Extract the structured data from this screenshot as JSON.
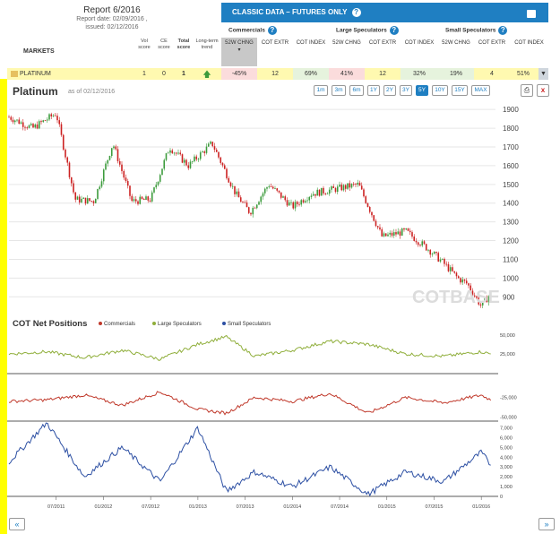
{
  "report": {
    "title": "Report 6/2016",
    "report_date": "Report date: 02/09/2016 ,",
    "issued": "issued: 02/12/2016"
  },
  "header": {
    "title": "CLASSIC DATA – FUTURES ONLY",
    "help": "?"
  },
  "groups": {
    "commercials": "Commercials",
    "large": "Large Speculators",
    "small": "Small Speculators"
  },
  "left_headers": {
    "markets": "MARKETS",
    "vol": "Vol score",
    "ce": "CE score",
    "total": "Total score",
    "trend": "Long-term trend"
  },
  "cols": {
    "chng": "52W CHNG",
    "extr": "COT EXTR",
    "index": "COT INDEX"
  },
  "row": {
    "name": "PLATINUM",
    "vol": "1",
    "ce": "0",
    "total": "1",
    "com_chng": "-45%",
    "com_extr": "12",
    "com_index": "69%",
    "large_chng": "41%",
    "large_extr": "12",
    "large_index": "32%",
    "small_chng": "19%",
    "small_extr": "4",
    "small_index": "51%"
  },
  "price_chart": {
    "title": "Platinum",
    "date": "as of 02/12/2016",
    "watermark": "COTBASE"
  },
  "ranges": [
    "1m",
    "3m",
    "6m",
    "1Y",
    "2Y",
    "3Y",
    "5Y",
    "10Y",
    "15Y",
    "MAX"
  ],
  "active_range": "5Y",
  "close_label": "x",
  "cot": {
    "title": "COT Net Positions"
  },
  "nav": {
    "prev": "«",
    "next": "»"
  },
  "colors": {
    "commercials": "#c0392b",
    "large": "#8fae3a",
    "small": "#2c4fa3",
    "up": "#3c9b3c",
    "down": "#cc2222"
  },
  "chart_data": [
    {
      "type": "line",
      "title": "Platinum",
      "ylim": [
        820,
        1920
      ],
      "y_ticks": [
        900,
        1000,
        1100,
        1200,
        1300,
        1400,
        1500,
        1600,
        1700,
        1800,
        1900
      ],
      "x_ticks": [
        "07/2011",
        "01/2012",
        "07/2012",
        "01/2013",
        "07/2013",
        "01/2014",
        "07/2014",
        "01/2015",
        "07/2015",
        "01/2016"
      ],
      "x": [
        2011.0,
        2011.25,
        2011.5,
        2011.7,
        2011.9,
        2012.1,
        2012.3,
        2012.5,
        2012.7,
        2012.9,
        2013.15,
        2013.4,
        2013.55,
        2013.75,
        2014.0,
        2014.2,
        2014.5,
        2014.7,
        2014.95,
        2015.2,
        2015.45,
        2015.6,
        2015.75,
        2015.85,
        2016.0,
        2016.1
      ],
      "series": [
        {
          "name": "Platinum",
          "values": [
            1860,
            1800,
            1880,
            1420,
            1410,
            1720,
            1410,
            1420,
            1700,
            1600,
            1720,
            1450,
            1350,
            1500,
            1380,
            1450,
            1480,
            1500,
            1220,
            1250,
            1150,
            1080,
            1000,
            970,
            850,
            920
          ]
        }
      ]
    },
    {
      "type": "line",
      "title": "COT Net Positions",
      "x_ticks": [
        "07/2011",
        "01/2012",
        "07/2012",
        "01/2013",
        "07/2013",
        "01/2014",
        "07/2014",
        "01/2015",
        "07/2015",
        "01/2016"
      ],
      "x": [
        2011.0,
        2011.4,
        2011.8,
        2012.2,
        2012.6,
        2013.0,
        2013.3,
        2013.6,
        2014.0,
        2014.4,
        2014.8,
        2015.2,
        2015.6,
        2016.0,
        2016.1
      ],
      "series": [
        {
          "name": "Commercials",
          "values": [
            -30000,
            -28000,
            -22000,
            -35000,
            -18000,
            -40000,
            -45000,
            -25000,
            -30000,
            -20000,
            -45000,
            -25000,
            -32000,
            -22000,
            -28000
          ]
        },
        {
          "name": "Large Speculators",
          "values": [
            25000,
            28000,
            20000,
            30000,
            18000,
            38000,
            48000,
            22000,
            30000,
            42000,
            38000,
            25000,
            22000,
            28000,
            25000
          ]
        },
        {
          "name": "Small Speculators",
          "values": [
            3500,
            7500,
            2000,
            5000,
            1500,
            7000,
            500,
            2500,
            1000,
            3000,
            200,
            2500,
            1500,
            4500,
            3200
          ]
        }
      ],
      "y_ticks_large": [
        "50,000",
        "25,000"
      ],
      "y_ticks_com": [
        "-25,000",
        "-50,000"
      ],
      "y_ticks_small": [
        "7,000",
        "6,000",
        "5,000",
        "4,000",
        "3,000",
        "2,000",
        "1,000",
        "0"
      ]
    }
  ]
}
